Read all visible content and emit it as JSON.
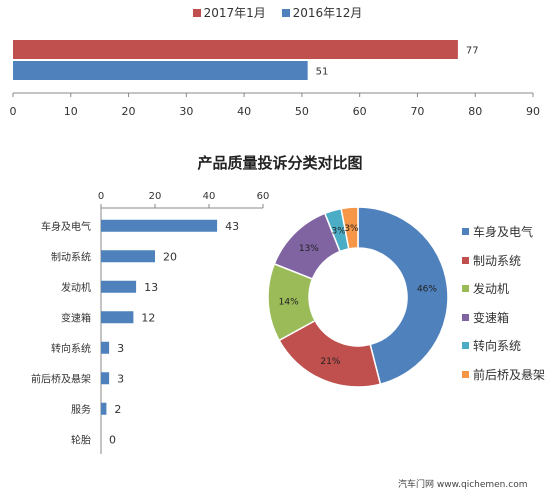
{
  "chart_data": [
    {
      "type": "bar",
      "orientation": "horizontal",
      "series": [
        {
          "name": "2017年1月",
          "values": [
            77
          ],
          "color": "#c0504d"
        },
        {
          "name": "2016年12月",
          "values": [
            51
          ],
          "color": "#4f81bd"
        }
      ],
      "xlim": [
        0,
        90
      ],
      "xticks": [
        "0",
        "10",
        "20",
        "30",
        "40",
        "50",
        "60",
        "70",
        "80",
        "90"
      ],
      "legend": "top",
      "grid": false
    },
    {
      "type": "bar",
      "orientation": "horizontal",
      "title": "产品质量投诉分类对比图",
      "categories": [
        "车身及电气",
        "制动系统",
        "发动机",
        "变速箱",
        "转向系统",
        "前后桥及悬架",
        "服务",
        "轮胎"
      ],
      "values": [
        43,
        20,
        13,
        12,
        3,
        3,
        2,
        0
      ],
      "xlim": [
        0,
        60
      ],
      "xticks": [
        "0",
        "20",
        "40",
        "60"
      ],
      "color": "#4f81bd",
      "grid": false
    },
    {
      "type": "pie",
      "style": "donut",
      "categories": [
        "车身及电气",
        "制动系统",
        "发动机",
        "变速箱",
        "转向系统",
        "前后桥及悬架"
      ],
      "values": [
        46,
        21,
        14,
        13,
        3,
        3
      ],
      "labels": [
        "46%",
        "21%",
        "14%",
        "13%",
        "3%",
        "3%"
      ],
      "colors": [
        "#4f81bd",
        "#c0504d",
        "#9bbb59",
        "#8064a2",
        "#4bacc6",
        "#f79646"
      ],
      "legend": "right"
    }
  ],
  "footer": "汽车门网 www.qichemen.com"
}
